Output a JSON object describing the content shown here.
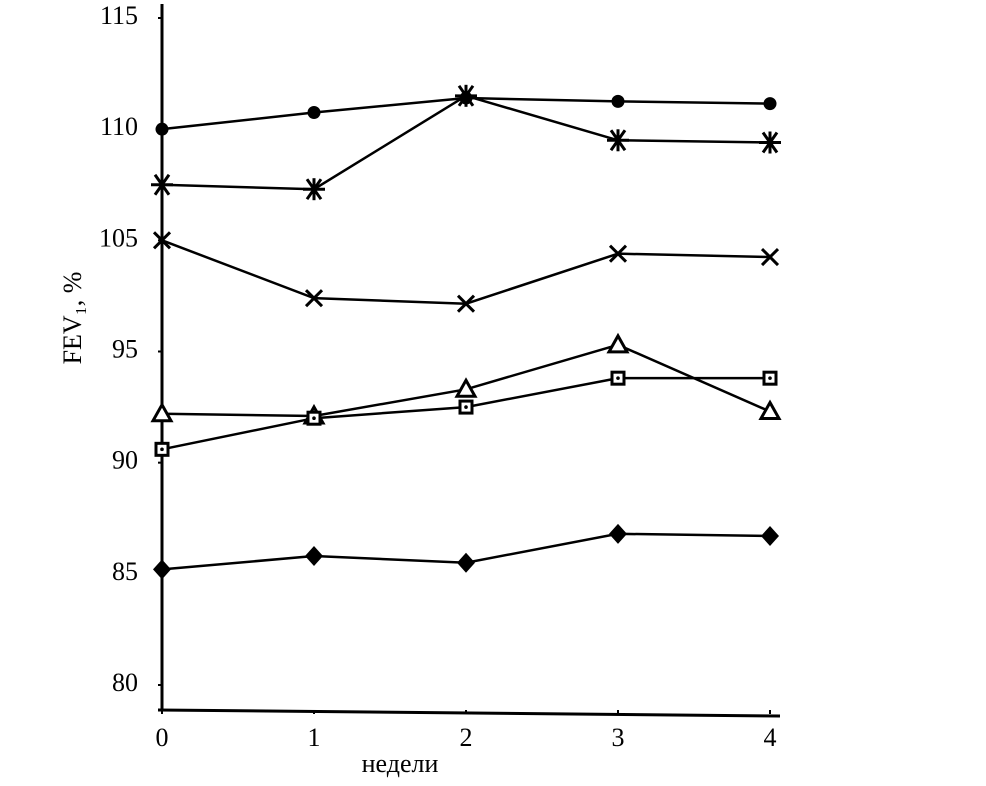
{
  "chart_data": {
    "type": "line",
    "ylabel": "FEV₁, %",
    "xlabel": "недели",
    "x": [
      0,
      1,
      2,
      3,
      4
    ],
    "xlim": [
      0,
      4
    ],
    "xticks": [
      0,
      1,
      2,
      3,
      4
    ],
    "ylim": [
      80,
      115
    ],
    "yticks": [
      80,
      85,
      90,
      95,
      105,
      110,
      115
    ],
    "series": [
      {
        "marker": "circle",
        "color": "#000000",
        "values": [
          110,
          110.75,
          111.4,
          111.25,
          111.15
        ]
      },
      {
        "marker": "asterisk",
        "color": "#000000",
        "values": [
          107.5,
          107.3,
          111.5,
          109.5,
          109.4
        ]
      },
      {
        "marker": "cross",
        "color": "#000000",
        "values": [
          105,
          99.8,
          99.3,
          103.8,
          103.5
        ]
      },
      {
        "marker": "triangle",
        "color": "#000000",
        "values": [
          92.2,
          92.1,
          93.3,
          95.6,
          92.3
        ]
      },
      {
        "marker": "square",
        "color": "#000000",
        "values": [
          90.6,
          92.0,
          92.5,
          93.8,
          93.8
        ]
      },
      {
        "marker": "diamond",
        "color": "#000000",
        "values": [
          85.2,
          85.8,
          85.5,
          86.8,
          86.7
        ]
      }
    ]
  }
}
